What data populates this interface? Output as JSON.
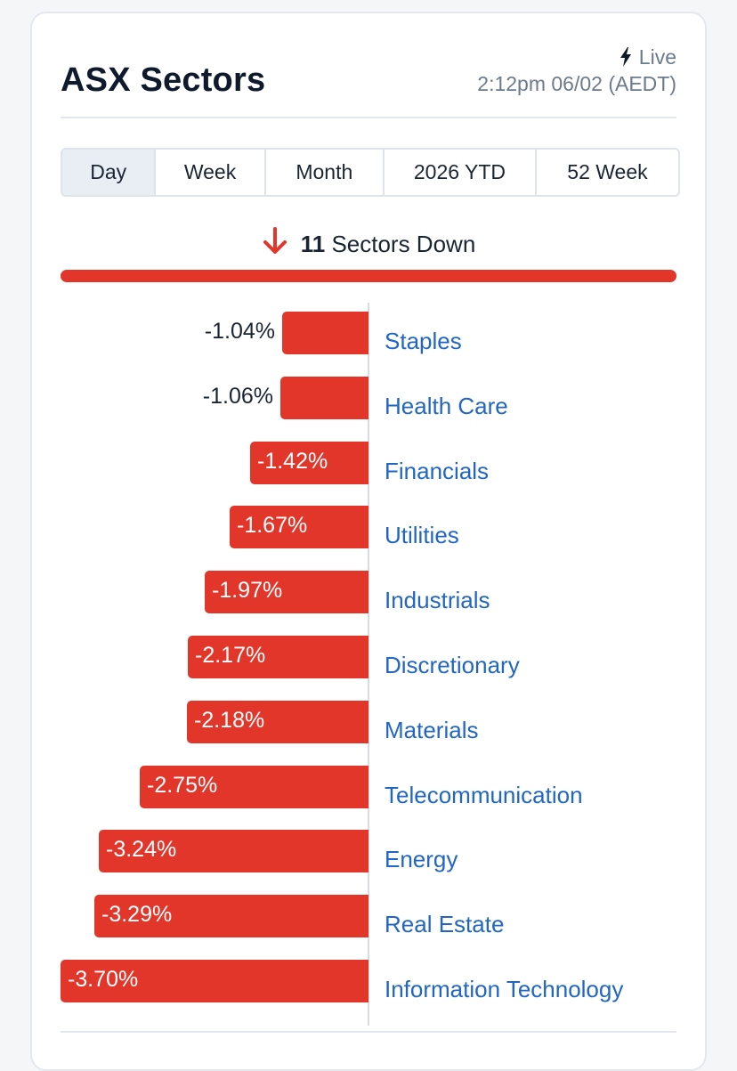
{
  "header": {
    "title": "ASX Sectors",
    "live_label": "Live",
    "timestamp": "2:12pm 06/02 (AEDT)"
  },
  "tabs": [
    {
      "label": "Day",
      "active": true
    },
    {
      "label": "Week",
      "active": false
    },
    {
      "label": "Month",
      "active": false
    },
    {
      "label": "2026 YTD",
      "active": false
    },
    {
      "label": "52 Week",
      "active": false
    }
  ],
  "summary": {
    "count": "11",
    "text": "Sectors Down",
    "direction_icon": "arrow-down-icon"
  },
  "colors": {
    "down": "#e2362a",
    "link": "#2166c3"
  },
  "chart_data": {
    "type": "bar",
    "orientation": "horizontal",
    "categories": [
      "Staples",
      "Health Care",
      "Financials",
      "Utilities",
      "Industrials",
      "Discretionary",
      "Materials",
      "Telecommunication",
      "Energy",
      "Real Estate",
      "Information Technology"
    ],
    "values": [
      -1.04,
      -1.06,
      -1.42,
      -1.67,
      -1.97,
      -2.17,
      -2.18,
      -2.75,
      -3.24,
      -3.29,
      -3.7
    ],
    "labels": [
      "-1.04%",
      "-1.06%",
      "-1.42%",
      "-1.67%",
      "-1.97%",
      "-2.17%",
      "-2.18%",
      "-2.75%",
      "-3.24%",
      "-3.29%",
      "-3.70%"
    ],
    "xlim": [
      -3.7,
      0
    ]
  }
}
